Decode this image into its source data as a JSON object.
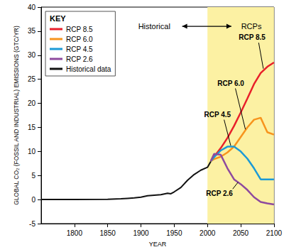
{
  "chart_data": {
    "type": "line",
    "x_label": "YEAR",
    "y_label": "GLOBAL CO₂ (FOSSIL AND INDUSTRIAL) EMISSIONS (GTC/YR)",
    "xlim": [
      1750,
      2100
    ],
    "xticks": [
      1800,
      1850,
      1900,
      1950,
      2000,
      2050,
      2100
    ],
    "ylim": [
      -5,
      40
    ],
    "yticks": [
      -5,
      0,
      5,
      10,
      15,
      20,
      25,
      30,
      35,
      40
    ],
    "grid": false,
    "legend": "upper left",
    "legend_title": "KEY",
    "shaded_region": {
      "x": [
        2000,
        2100
      ]
    },
    "annotations": [
      "Historical",
      "RCPs"
    ],
    "series": [
      {
        "name": "RCP 8.5",
        "color": "#e8202a",
        "x": [
          2005,
          2010,
          2020,
          2030,
          2040,
          2050,
          2060,
          2070,
          2080,
          2090,
          2100
        ],
        "values": [
          8,
          8.9,
          10.7,
          12.8,
          15.3,
          18.1,
          21,
          24,
          26.3,
          27.6,
          28.5
        ]
      },
      {
        "name": "RCP 6.0",
        "color": "#f7941d",
        "x": [
          2005,
          2010,
          2020,
          2030,
          2040,
          2050,
          2060,
          2070,
          2080,
          2090,
          2100
        ],
        "values": [
          8,
          8.4,
          8.9,
          9.8,
          11,
          13,
          15,
          16.6,
          17,
          14,
          13.5
        ]
      },
      {
        "name": "RCP 4.5",
        "color": "#1c9ad6",
        "x": [
          2005,
          2010,
          2020,
          2030,
          2040,
          2050,
          2060,
          2070,
          2080,
          2090,
          2100
        ],
        "values": [
          8,
          8.8,
          10.2,
          11,
          11,
          10,
          8.5,
          6.5,
          4.2,
          4.2,
          4.2
        ]
      },
      {
        "name": "RCP 2.6",
        "color": "#8e4a9e",
        "x": [
          2005,
          2010,
          2020,
          2030,
          2040,
          2050,
          2060,
          2070,
          2080,
          2090,
          2100
        ],
        "values": [
          8,
          9.5,
          9.3,
          6.5,
          4.2,
          3.2,
          2,
          0.5,
          -0.5,
          -0.8,
          -1
        ]
      },
      {
        "name": "Historical data",
        "color": "#111111",
        "x": [
          1750,
          1800,
          1850,
          1870,
          1880,
          1890,
          1900,
          1910,
          1920,
          1930,
          1940,
          1945,
          1950,
          1960,
          1970,
          1980,
          1990,
          2000,
          2005
        ],
        "values": [
          0,
          0.01,
          0.05,
          0.15,
          0.25,
          0.35,
          0.5,
          0.8,
          0.9,
          1.0,
          1.3,
          1.2,
          1.6,
          2.5,
          4.0,
          5.2,
          6.1,
          6.7,
          7.9
        ]
      }
    ]
  }
}
